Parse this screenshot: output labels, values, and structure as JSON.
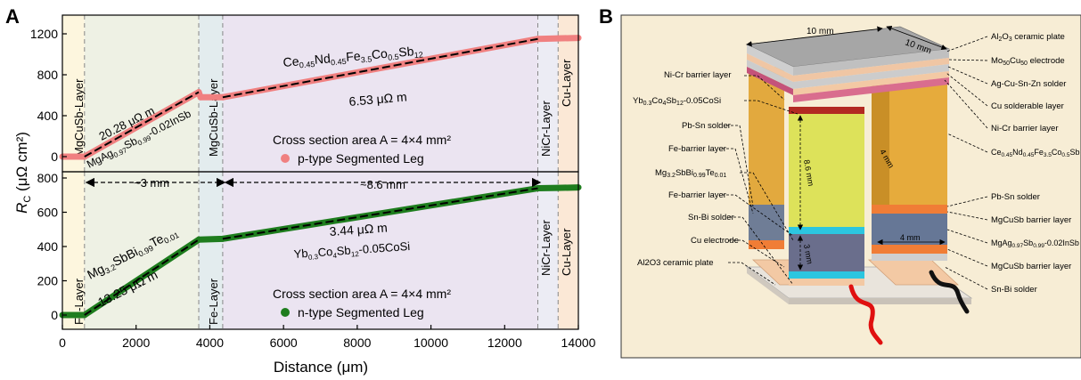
{
  "panel_a": {
    "letter": "A",
    "x_axis_label": "Distance (μm)",
    "y_axis_label_main": "R",
    "y_axis_label_sub": "C",
    "y_axis_label_unit": " (μΩ cm²)",
    "x_ticks": [
      "0",
      "2000",
      "4000",
      "6000",
      "8000",
      "10000",
      "12000",
      "14000"
    ],
    "top_y_ticks": [
      "0",
      "400",
      "800",
      "1200"
    ],
    "bottom_y_ticks": [
      "0",
      "200",
      "400",
      "600",
      "800"
    ],
    "top_plot": {
      "regions": [
        {
          "from": 0,
          "to": 600,
          "color": "#fdf6de"
        },
        {
          "from": 600,
          "to": 3700,
          "color": "#eef1e4"
        },
        {
          "from": 3700,
          "to": 4350,
          "color": "#e3ecee"
        },
        {
          "from": 4350,
          "to": 12900,
          "color": "#ebe4f1"
        },
        {
          "from": 12900,
          "to": 13450,
          "color": "#ececf4"
        },
        {
          "from": 13450,
          "to": 14000,
          "color": "#fbe8d6"
        }
      ],
      "boundaries": [
        600,
        3700,
        4350,
        12900,
        13450
      ],
      "layer_labels": [
        "MgCuSb-Layer",
        "MgCuSb-Layer",
        "NiCr-Layer",
        "Cu-Layer"
      ],
      "seg1_label": "MgAg0.97Sb0.99-0.02InSb",
      "seg1_slope": "20.28 μΩ m",
      "seg2_label": "Ce0.45Nd0.45Fe3.5Co0.5Sb12",
      "seg2_slope": "6.53 μΩ m",
      "area_text": "Cross section area A = 4×4 mm²",
      "legend": "p-type Segmented Leg",
      "color": "#f08080"
    },
    "bottom_plot": {
      "regions": [
        {
          "from": 0,
          "to": 600,
          "color": "#fdf6de"
        },
        {
          "from": 600,
          "to": 3700,
          "color": "#eef1e4"
        },
        {
          "from": 3700,
          "to": 4350,
          "color": "#e3ecee"
        },
        {
          "from": 4350,
          "to": 12900,
          "color": "#ebe4f1"
        },
        {
          "from": 12900,
          "to": 13450,
          "color": "#ececf4"
        },
        {
          "from": 13450,
          "to": 14000,
          "color": "#fbe8d6"
        }
      ],
      "boundaries": [
        600,
        3700,
        4350,
        12900,
        13450
      ],
      "layer_labels": [
        "Fe-Layer",
        "Fe-Layer",
        "NiCr-Layer",
        "Cu-Layer"
      ],
      "seg1_label": "Mg3.2SbBi0.99Te0.01",
      "seg1_slope": "13.25 μΩ m",
      "seg2_label": "Yb0.3Co4Sb12-0.05CoSi",
      "seg2_slope": "3.44 μΩ m",
      "dim1": "~3 mm",
      "dim2": "~8.6 mm",
      "area_text": "Cross section area A = 4×4 mm²",
      "legend": "n-type Segmented Leg",
      "color": "#1e7d1e"
    }
  },
  "panel_b": {
    "letter": "B",
    "dim_top1": "10 mm",
    "dim_top2": "10 mm",
    "dim_p_height": "8.6 mm",
    "dim_p_width": "4 mm",
    "dim_n_width": "4 mm",
    "dim_n_seg": "3 mm",
    "left_labels": [
      "Ni-Cr barrier layer",
      "Yb0.3Co4Sb12-0.05CoSi",
      "Pb-Sn solder",
      "Fe-barrier layer",
      "Mg3.2SbBi0.99Te0.01",
      "Fe-barrier layer",
      "Sn-Bi solder",
      "Cu electrode",
      "Al2O3 ceramic plate"
    ],
    "right_labels": [
      "Al2O3 ceramic plate",
      "Mo50Cu50 electrode",
      "Ag-Cu-Sn-Zn solder",
      "Cu solderable layer",
      "Ni-Cr barrier layer",
      "Ce0.45Nd0.45Fe3.5Co0.5Sb12",
      "Pb-Sn solder",
      "MgCuSb barrier layer",
      "MgAg0.97Sb0.99-0.02InSb",
      "MgCuSb barrier layer",
      "Sn-Bi solder"
    ]
  },
  "chart_data": [
    {
      "type": "line",
      "title": "",
      "xlabel": "Distance (μm)",
      "ylabel": "RC (μΩ cm²)",
      "xlim": [
        0,
        14000
      ],
      "ylim": [
        -80,
        1250
      ],
      "series": [
        {
          "name": "p-type Segmented Leg",
          "x": [
            0,
            600,
            3700,
            3750,
            4350,
            12900,
            13450,
            14000
          ],
          "y": [
            0,
            0,
            630,
            580,
            580,
            1150,
            1155,
            1160
          ]
        }
      ]
    },
    {
      "type": "line",
      "title": "",
      "xlabel": "Distance (μm)",
      "ylabel": "RC (μΩ cm²)",
      "xlim": [
        0,
        14000
      ],
      "ylim": [
        -60,
        830
      ],
      "series": [
        {
          "name": "n-type Segmented Leg",
          "x": [
            0,
            600,
            3700,
            4350,
            12900,
            13450,
            14000
          ],
          "y": [
            0,
            0,
            440,
            445,
            740,
            742,
            745
          ]
        }
      ]
    }
  ]
}
